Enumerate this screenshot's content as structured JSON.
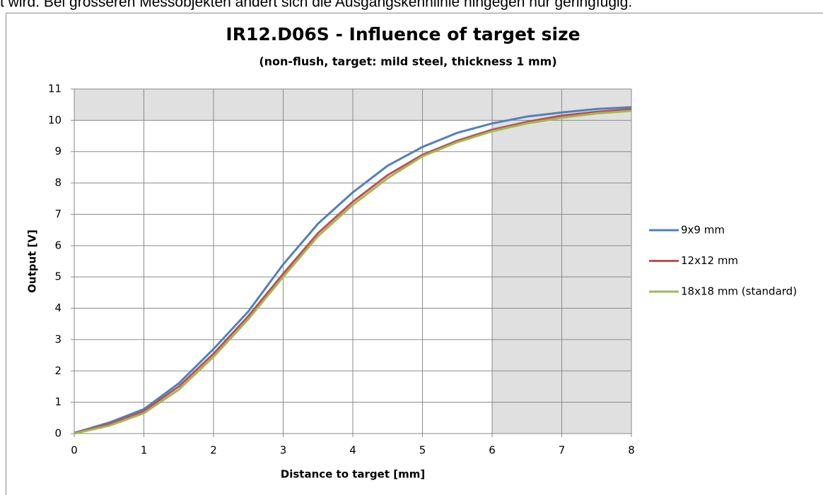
{
  "page_text": "t wird. Bei grösseren Messobjekten ändert sich die Ausgangskennlinie hingegen nur geringfügig.",
  "chart_data": {
    "type": "line",
    "title": "IR12.D06S - Influence of target size",
    "subtitle": "(non-flush, target: mild steel, thickness 1 mm)",
    "x_label": "Distance to target [mm]",
    "y_label": "Output [V]",
    "x": [
      0,
      0.5,
      1,
      1.5,
      2,
      2.5,
      3,
      3.5,
      4,
      4.5,
      5,
      5.5,
      6,
      6.5,
      7,
      7.5,
      8
    ],
    "series": [
      {
        "name": "9x9 mm",
        "color": "#4f81bd",
        "values": [
          0.02,
          0.35,
          0.78,
          1.6,
          2.7,
          3.9,
          5.4,
          6.7,
          7.7,
          8.55,
          9.15,
          9.6,
          9.9,
          10.12,
          10.25,
          10.36,
          10.42
        ]
      },
      {
        "name": "12x12 mm",
        "color": "#c0504d",
        "values": [
          0.02,
          0.3,
          0.72,
          1.5,
          2.55,
          3.75,
          5.1,
          6.4,
          7.4,
          8.25,
          8.9,
          9.35,
          9.7,
          9.95,
          10.15,
          10.27,
          10.36
        ]
      },
      {
        "name": "18x18 mm (standard)",
        "color": "#9bbb59",
        "values": [
          0.0,
          0.25,
          0.65,
          1.4,
          2.45,
          3.65,
          5.0,
          6.3,
          7.3,
          8.15,
          8.85,
          9.3,
          9.65,
          9.9,
          10.08,
          10.22,
          10.3
        ]
      }
    ],
    "shaded_regions": [
      {
        "x": [
          0,
          8
        ],
        "y": [
          10,
          11
        ]
      },
      {
        "x": [
          6,
          8
        ],
        "y": [
          0,
          11
        ]
      }
    ],
    "shade_color": "#e0e0e0",
    "xlim": [
      0,
      8
    ],
    "xticks": [
      0,
      1,
      2,
      3,
      4,
      5,
      6,
      7,
      8
    ],
    "ylim": [
      0,
      11
    ],
    "yticks": [
      0,
      1,
      2,
      3,
      4,
      5,
      6,
      7,
      8,
      9,
      10,
      11
    ],
    "grid": true,
    "legend": "right"
  }
}
